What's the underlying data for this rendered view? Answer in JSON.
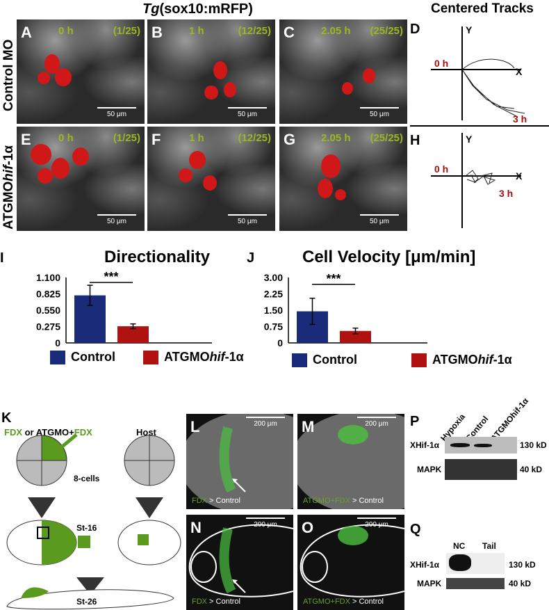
{
  "header": {
    "title_italic": "Tg",
    "title_rest": "(sox10:mRFP)",
    "tracks_title": "Centered Tracks"
  },
  "rows": {
    "control": "Control MO",
    "atgmo_prefix": "ATGMO",
    "atgmo_italic": "hif",
    "atgmo_suffix": "-1α"
  },
  "panels": [
    {
      "letter": "A",
      "time": "0 h",
      "frame": "(1/25)",
      "scale": "50 μm"
    },
    {
      "letter": "B",
      "time": "1 h",
      "frame": "(12/25)",
      "scale": "50 μm"
    },
    {
      "letter": "C",
      "time": "2.05 h",
      "frame": "(25/25)",
      "scale": "50 μm"
    },
    {
      "letter": "E",
      "time": "0 h",
      "frame": "(1/25)",
      "scale": "50 μm"
    },
    {
      "letter": "F",
      "time": "1 h",
      "frame": "(12/25)",
      "scale": "50 μm"
    },
    {
      "letter": "G",
      "time": "2.05 h",
      "frame": "(25/25)",
      "scale": "50 μm"
    }
  ],
  "tracks": [
    {
      "letter": "D",
      "y": "Y",
      "x": "X",
      "start": "0 h",
      "end": "3 h"
    },
    {
      "letter": "H",
      "y": "Y",
      "x": "X",
      "start": "0 h",
      "end": "3 h"
    }
  ],
  "chart_data": [
    {
      "letter": "I",
      "type": "bar",
      "title": "Directionality",
      "categories": [
        "Control",
        "ATGMOhif-1α"
      ],
      "values": [
        0.8,
        0.28
      ],
      "error_low": [
        0.63,
        0.24
      ],
      "error_high": [
        0.97,
        0.32
      ],
      "ylim": [
        0,
        1.1
      ],
      "yticks": [
        "0",
        "0.275",
        "0.550",
        "0.825",
        "1.100"
      ],
      "significance": "***",
      "colors": [
        "#1a2b7a",
        "#b01212"
      ],
      "legend": [
        "Control",
        "ATGMOhif-1α"
      ]
    },
    {
      "letter": "J",
      "type": "bar",
      "title": "Cell Velocity [μm/min]",
      "categories": [
        "Control",
        "ATGMOhif-1α"
      ],
      "values": [
        1.45,
        0.55
      ],
      "error_low": [
        0.85,
        0.42
      ],
      "error_high": [
        2.05,
        0.68
      ],
      "ylim": [
        0,
        3
      ],
      "yticks": [
        "0",
        "0.75",
        "1.50",
        "2.25",
        "3.00"
      ],
      "significance": "***",
      "colors": [
        "#1a2b7a",
        "#b01212"
      ],
      "legend": [
        "Control",
        "ATGMOhif-1α"
      ]
    }
  ],
  "legend": {
    "control": "Control",
    "atgmo_prefix": "ATGMO",
    "atgmo_italic": "hif",
    "atgmo_suffix": "-1α"
  },
  "diagram": {
    "letter": "K",
    "fdx": "FDX",
    "or": " or ATGMO+",
    "fdx2": "FDX",
    "host": "Host",
    "cells": "8-cells",
    "st16": "St-16",
    "st26": "St-26"
  },
  "embryos": [
    {
      "letter": "L",
      "scale": "200 μm",
      "cap_green": "FDX",
      "cap_white": " > Control"
    },
    {
      "letter": "M",
      "scale": "200 μm",
      "cap_green": "ATGMO+FDX",
      "cap_white": " > Control"
    },
    {
      "letter": "N",
      "scale": "200 μm",
      "cap_green": "FDX",
      "cap_white": " > Control"
    },
    {
      "letter": "O",
      "scale": "200 μm",
      "cap_green": "ATGMO+FDX",
      "cap_white": " > Control"
    }
  ],
  "blotP": {
    "letter": "P",
    "lanes": [
      "Hypoxia",
      "Control",
      "ATGMOhif-1α"
    ],
    "rows": [
      "XHif-1α",
      "MAPK"
    ],
    "sizes": [
      "130 kD",
      "40 kD"
    ]
  },
  "blotQ": {
    "letter": "Q",
    "lanes": [
      "NC",
      "Tail"
    ],
    "rows": [
      "XHif-1α",
      "MAPK"
    ],
    "sizes": [
      "130 kD",
      "40 kD"
    ]
  }
}
